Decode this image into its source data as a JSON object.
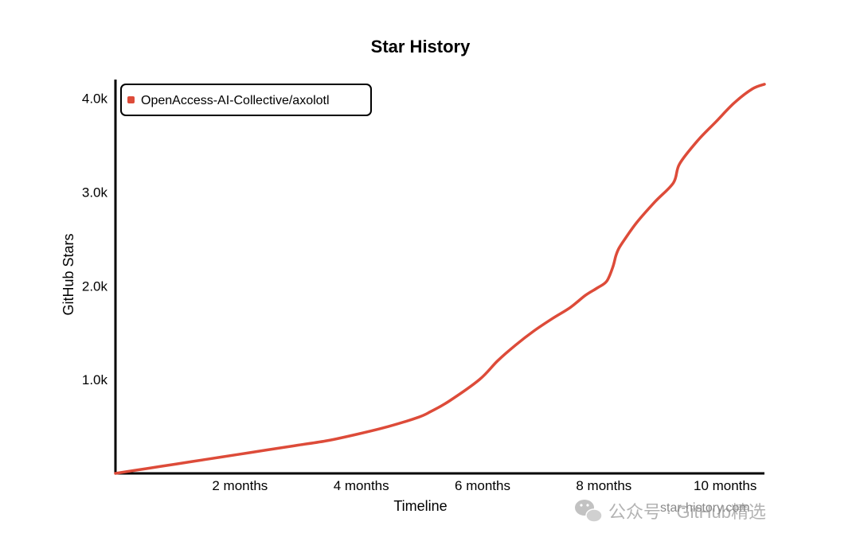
{
  "colors": {
    "series": "#dd4b39",
    "axis": "#000000",
    "watermark": "#b3b3b3"
  },
  "watermark": {
    "text": "公众号 · GitHub精选",
    "icon": "wechat-icon"
  },
  "chart_data": {
    "type": "line",
    "title": "Star History",
    "xlabel": "Timeline",
    "ylabel": "GitHub Stars",
    "xlim": [
      0,
      10.7
    ],
    "ylim": [
      0,
      4.2
    ],
    "x_ticks": [
      {
        "value": 2,
        "label": "2 months"
      },
      {
        "value": 4,
        "label": "4 months"
      },
      {
        "value": 6,
        "label": "6 months"
      },
      {
        "value": 8,
        "label": "8 months"
      },
      {
        "value": 10,
        "label": "10 months"
      }
    ],
    "y_ticks": [
      {
        "value": 1.0,
        "label": "1.0k"
      },
      {
        "value": 2.0,
        "label": "2.0k"
      },
      {
        "value": 3.0,
        "label": "3.0k"
      },
      {
        "value": 4.0,
        "label": "4.0k"
      }
    ],
    "credit": "star-history.com",
    "legend": {
      "position": "top-left",
      "entries": [
        "OpenAccess-AI-Collective/axolotl"
      ]
    },
    "series": [
      {
        "name": "OpenAccess-AI-Collective/axolotl",
        "unit": "k stars",
        "x": [
          0,
          0.5,
          1,
          1.5,
          2,
          2.5,
          3,
          3.5,
          4,
          4.5,
          5,
          5.2,
          5.5,
          6,
          6.3,
          6.6,
          6.9,
          7.2,
          7.5,
          7.75,
          7.95,
          8.1,
          8.2,
          8.25,
          8.3,
          8.4,
          8.6,
          8.9,
          9.2,
          9.3,
          9.6,
          9.9,
          10.2,
          10.5,
          10.7
        ],
        "values": [
          0,
          0.05,
          0.1,
          0.15,
          0.2,
          0.25,
          0.3,
          0.35,
          0.42,
          0.5,
          0.6,
          0.66,
          0.77,
          1.0,
          1.2,
          1.37,
          1.52,
          1.65,
          1.77,
          1.9,
          1.98,
          2.05,
          2.2,
          2.32,
          2.4,
          2.5,
          2.68,
          2.9,
          3.1,
          3.3,
          3.55,
          3.75,
          3.95,
          4.1,
          4.15
        ]
      }
    ]
  }
}
